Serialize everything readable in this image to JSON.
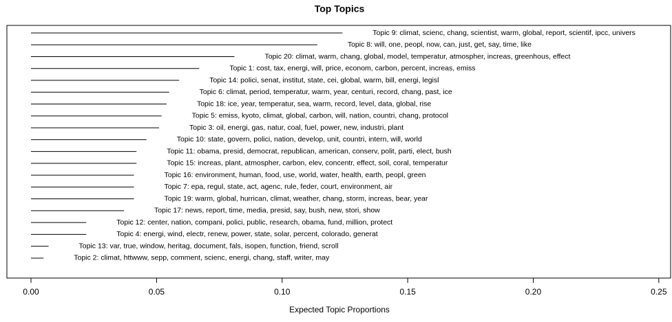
{
  "chart_data": {
    "type": "bar",
    "orientation": "horizontal",
    "title": "Top Topics",
    "x_label": "Expected Topic Proportions",
    "color": "#000000",
    "categories": [
      "Topic 9: climat, scienc, chang, scientist, warm, global, report, scientif, ipcc, univers",
      "Topic 8: will, one, peopl, now, can, just, get, say, time, like",
      "Topic 20: climat, warm, chang, global, model, temperatur, atmospher, increas, greenhous, effect",
      "Topic 1: cost, tax, energi, will, price, econom, carbon, percent, increas, emiss",
      "Topic 14: polici, senat, institut, state, cei, global, warm, bill, energi, legisl",
      "Topic 6: climat, period, temperatur, warm, year, centuri, record, chang, past, ice",
      "Topic 18: ice, year, temperatur, sea, warm, record, level, data, global, rise",
      "Topic 5: emiss, kyoto, climat, global, carbon, will, nation, countri, chang, protocol",
      "Topic 3: oil, energi, gas, natur, coal, fuel, power, new, industri, plant",
      "Topic 10: state, govern, polici, nation, develop, unit, countri, intern, will, world",
      "Topic 11: obama, presid, democrat, republican, american, conserv, polit, parti, elect, bush",
      "Topic 15: increas, plant, atmospher, carbon, elev, concentr, effect, soil, coral, temperatur",
      "Topic 16: environment, human, food, use, world, water, health, earth, peopl, green",
      "Topic 7: epa, regul, state, act, agenc, rule, feder, court, environment, air",
      "Topic 19: warm, global, hurrican, climat, weather, chang, storm, increas, bear, year",
      "Topic 17: news, report, time, media, presid, say, bush, new, stori, show",
      "Topic 12: center, nation, compani, polici, public, research, obama, fund, million, protect",
      "Topic 4: energi, wind, electr, renew, power, state, solar, percent, colorado, generat",
      "Topic 13: var, true, window, heritag, document, fals, isopen, function, friend, scroll",
      "Topic 2: climat, httwww, sepp, comment, scienc, energi, chang, staff, writer, may"
    ],
    "values": [
      0.124,
      0.114,
      0.081,
      0.067,
      0.059,
      0.055,
      0.054,
      0.052,
      0.051,
      0.046,
      0.042,
      0.042,
      0.041,
      0.041,
      0.041,
      0.037,
      0.022,
      0.022,
      0.007,
      0.005
    ],
    "xlim": [
      -0.0096,
      0.2547
    ],
    "xticks": [
      {
        "value": 0,
        "label": "0.00"
      },
      {
        "value": 0.05,
        "label": "0.05"
      },
      {
        "value": 0.1,
        "label": "0.10"
      },
      {
        "value": 0.15,
        "label": "0.15"
      },
      {
        "value": 0.2,
        "label": "0.20"
      },
      {
        "value": 0.25,
        "label": "0.25"
      }
    ]
  }
}
